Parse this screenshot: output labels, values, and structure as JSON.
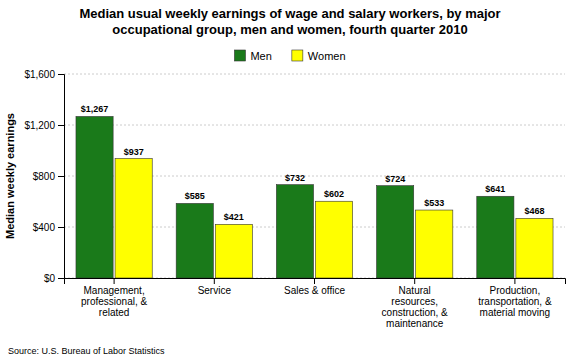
{
  "chart_data": {
    "type": "bar",
    "title": "Median usual weekly earnings of wage and salary workers, by major\noccupational group, men and women, fourth quarter 2010",
    "categories": [
      "Management,\nprofessional, &\nrelated",
      "Service",
      "Sales & office",
      "Natural\nresources,\nconstruction, &\nmaintenance",
      "Production,\ntransportation, &\nmaterial moving"
    ],
    "series": [
      {
        "name": "Men",
        "color": "#1a7a1a",
        "values": [
          1267,
          585,
          732,
          724,
          641
        ],
        "value_labels": [
          "$1,267",
          "$585",
          "$732",
          "$724",
          "$641"
        ]
      },
      {
        "name": "Women",
        "color": "#ffff00",
        "values": [
          937,
          421,
          602,
          533,
          468
        ],
        "value_labels": [
          "$937",
          "$421",
          "$602",
          "$533",
          "$468"
        ]
      }
    ],
    "ylabel": "Median weekly earnings",
    "source": "Source: U.S. Bureau of Labor Statistics",
    "ylim": [
      0,
      1600
    ],
    "yticks": [
      {
        "value": 0,
        "label": "$0"
      },
      {
        "value": 400,
        "label": "$400"
      },
      {
        "value": 800,
        "label": "$800"
      },
      {
        "value": 1200,
        "label": "$1,200"
      },
      {
        "value": 1600,
        "label": "$1,600"
      }
    ],
    "grid": true,
    "legend": "top",
    "data_labels": true
  }
}
